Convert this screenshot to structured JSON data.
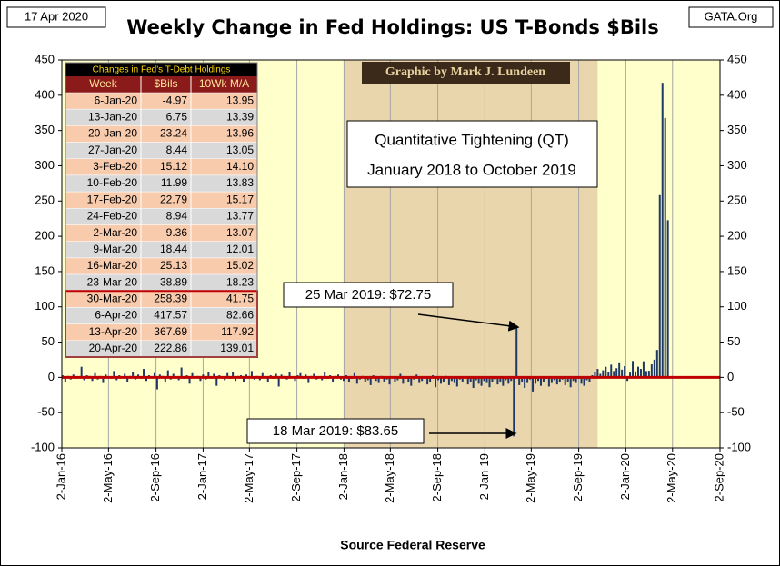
{
  "header": {
    "date": "17 Apr 2020",
    "site": "GATA.Org"
  },
  "chart_data": {
    "type": "bar",
    "title": "Weekly Change in Fed Holdings:  US T-Bonds $Bils",
    "credit": "Graphic by Mark J. Lundeen",
    "xlabel": "Source Federal Reserve",
    "color": "#1F3864",
    "zero_line_color": "#C00000",
    "grid": "x",
    "right_axis": true,
    "shade": {
      "from": "2018-01-01",
      "to": "2019-10-21",
      "color": "#EAD6AC"
    },
    "shade_text": [
      "Quantitative Tightening (QT)",
      "January 2018 to October 2019"
    ],
    "annotations": [
      {
        "text": "25 Mar 2019: $72.75"
      },
      {
        "text": "18 Mar 2019: $83.65"
      }
    ],
    "xlim": [
      "2016-01-02",
      "2020-09-02"
    ],
    "xticks": [
      {
        "value": "2016-01-02",
        "label": "2-Jan-16"
      },
      {
        "value": "2016-05-02",
        "label": "2-May-16"
      },
      {
        "value": "2016-09-02",
        "label": "2-Sep-16"
      },
      {
        "value": "2017-01-02",
        "label": "2-Jan-17"
      },
      {
        "value": "2017-05-02",
        "label": "2-May-17"
      },
      {
        "value": "2017-09-02",
        "label": "2-Sep-17"
      },
      {
        "value": "2018-01-02",
        "label": "2-Jan-18"
      },
      {
        "value": "2018-05-02",
        "label": "2-May-18"
      },
      {
        "value": "2018-09-02",
        "label": "2-Sep-18"
      },
      {
        "value": "2019-01-02",
        "label": "2-Jan-19"
      },
      {
        "value": "2019-05-02",
        "label": "2-May-19"
      },
      {
        "value": "2019-09-02",
        "label": "2-Sep-19"
      },
      {
        "value": "2020-01-02",
        "label": "2-Jan-20"
      },
      {
        "value": "2020-05-02",
        "label": "2-May-20"
      },
      {
        "value": "2020-09-02",
        "label": "2-Sep-20"
      }
    ],
    "ylim": [
      -100,
      450
    ],
    "yticks": [
      -100,
      -50,
      0,
      50,
      100,
      150,
      200,
      250,
      300,
      350,
      400,
      450
    ],
    "x": [
      "2016-01-04",
      "2016-01-11",
      "2016-01-18",
      "2016-01-25",
      "2016-02-01",
      "2016-02-08",
      "2016-02-15",
      "2016-02-22",
      "2016-02-29",
      "2016-03-07",
      "2016-03-14",
      "2016-03-21",
      "2016-03-28",
      "2016-04-04",
      "2016-04-11",
      "2016-04-18",
      "2016-04-25",
      "2016-05-02",
      "2016-05-09",
      "2016-05-16",
      "2016-05-23",
      "2016-05-30",
      "2016-06-06",
      "2016-06-13",
      "2016-06-20",
      "2016-06-27",
      "2016-07-04",
      "2016-07-11",
      "2016-07-18",
      "2016-07-25",
      "2016-08-01",
      "2016-08-08",
      "2016-08-15",
      "2016-08-22",
      "2016-08-29",
      "2016-09-05",
      "2016-09-12",
      "2016-09-19",
      "2016-09-26",
      "2016-10-03",
      "2016-10-10",
      "2016-10-17",
      "2016-10-24",
      "2016-10-31",
      "2016-11-07",
      "2016-11-14",
      "2016-11-21",
      "2016-11-28",
      "2016-12-05",
      "2016-12-12",
      "2016-12-19",
      "2016-12-26",
      "2017-01-02",
      "2017-01-09",
      "2017-01-16",
      "2017-01-23",
      "2017-01-30",
      "2017-02-06",
      "2017-02-13",
      "2017-02-20",
      "2017-02-27",
      "2017-03-06",
      "2017-03-13",
      "2017-03-20",
      "2017-03-27",
      "2017-04-03",
      "2017-04-10",
      "2017-04-17",
      "2017-04-24",
      "2017-05-01",
      "2017-05-08",
      "2017-05-15",
      "2017-05-22",
      "2017-05-29",
      "2017-06-05",
      "2017-06-12",
      "2017-06-19",
      "2017-06-26",
      "2017-07-03",
      "2017-07-10",
      "2017-07-17",
      "2017-07-24",
      "2017-07-31",
      "2017-08-07",
      "2017-08-14",
      "2017-08-21",
      "2017-08-28",
      "2017-09-04",
      "2017-09-11",
      "2017-09-18",
      "2017-09-25",
      "2017-10-02",
      "2017-10-09",
      "2017-10-16",
      "2017-10-23",
      "2017-10-30",
      "2017-11-06",
      "2017-11-13",
      "2017-11-20",
      "2017-11-27",
      "2017-12-04",
      "2017-12-11",
      "2017-12-18",
      "2017-12-25",
      "2018-01-01",
      "2018-01-08",
      "2018-01-15",
      "2018-01-22",
      "2018-01-29",
      "2018-02-05",
      "2018-02-12",
      "2018-02-19",
      "2018-02-26",
      "2018-03-05",
      "2018-03-12",
      "2018-03-19",
      "2018-03-26",
      "2018-04-02",
      "2018-04-09",
      "2018-04-16",
      "2018-04-23",
      "2018-04-30",
      "2018-05-07",
      "2018-05-14",
      "2018-05-21",
      "2018-05-28",
      "2018-06-04",
      "2018-06-11",
      "2018-06-18",
      "2018-06-25",
      "2018-07-02",
      "2018-07-09",
      "2018-07-16",
      "2018-07-23",
      "2018-07-30",
      "2018-08-06",
      "2018-08-13",
      "2018-08-20",
      "2018-08-27",
      "2018-09-03",
      "2018-09-10",
      "2018-09-17",
      "2018-09-24",
      "2018-10-01",
      "2018-10-08",
      "2018-10-15",
      "2018-10-22",
      "2018-10-29",
      "2018-11-05",
      "2018-11-12",
      "2018-11-19",
      "2018-11-26",
      "2018-12-03",
      "2018-12-10",
      "2018-12-17",
      "2018-12-24",
      "2018-12-31",
      "2019-01-07",
      "2019-01-14",
      "2019-01-21",
      "2019-01-28",
      "2019-02-04",
      "2019-02-11",
      "2019-02-18",
      "2019-02-25",
      "2019-03-04",
      "2019-03-11",
      "2019-03-18",
      "2019-03-25",
      "2019-04-01",
      "2019-04-08",
      "2019-04-15",
      "2019-04-22",
      "2019-04-29",
      "2019-05-06",
      "2019-05-13",
      "2019-05-20",
      "2019-05-27",
      "2019-06-03",
      "2019-06-10",
      "2019-06-17",
      "2019-06-24",
      "2019-07-01",
      "2019-07-08",
      "2019-07-15",
      "2019-07-22",
      "2019-07-29",
      "2019-08-05",
      "2019-08-12",
      "2019-08-19",
      "2019-08-26",
      "2019-09-02",
      "2019-09-09",
      "2019-09-16",
      "2019-09-23",
      "2019-09-30",
      "2019-10-07",
      "2019-10-14",
      "2019-10-21",
      "2019-10-28",
      "2019-11-04",
      "2019-11-11",
      "2019-11-18",
      "2019-11-25",
      "2019-12-02",
      "2019-12-09",
      "2019-12-16",
      "2019-12-23",
      "2019-12-30",
      "2020-01-06",
      "2020-01-13",
      "2020-01-20",
      "2020-01-27",
      "2020-02-03",
      "2020-02-10",
      "2020-02-17",
      "2020-02-24",
      "2020-03-02",
      "2020-03-09",
      "2020-03-16",
      "2020-03-23",
      "2020-03-30",
      "2020-04-06",
      "2020-04-13",
      "2020-04-20"
    ],
    "values": [
      3,
      -6,
      2,
      -3,
      4,
      -2,
      1,
      15,
      -4,
      3,
      2,
      -5,
      6,
      -3,
      2,
      -8,
      4,
      1,
      -2,
      9,
      -4,
      3,
      -1,
      5,
      -6,
      2,
      8,
      -3,
      4,
      -2,
      12,
      -5,
      3,
      -1,
      6,
      -17,
      4,
      2,
      -7,
      10,
      -3,
      5,
      1,
      -4,
      14,
      -2,
      3,
      -9,
      6,
      -1,
      2,
      -5,
      4,
      -3,
      7,
      -2,
      5,
      -12,
      3,
      1,
      -4,
      6,
      -2,
      8,
      -5,
      2,
      3,
      -6,
      4,
      -1,
      9,
      -3,
      2,
      -4,
      6,
      1,
      -7,
      3,
      -2,
      5,
      -13,
      4,
      2,
      -3,
      7,
      -1,
      -5,
      3,
      6,
      -2,
      4,
      -8,
      2,
      5,
      -3,
      1,
      -4,
      7,
      -2,
      3,
      -6,
      2,
      4,
      -3,
      -5,
      3,
      -7,
      -2,
      6,
      -9,
      -3,
      2,
      -6,
      -4,
      -11,
      3,
      -5,
      -8,
      2,
      -6,
      -3,
      -10,
      1,
      -7,
      -4,
      5,
      -9,
      -2,
      -6,
      -12,
      -3,
      4,
      -8,
      -5,
      -2,
      -10,
      -7,
      3,
      -14,
      -4,
      -9,
      -6,
      2,
      -11,
      -5,
      -8,
      -13,
      -3,
      -7,
      1,
      -10,
      -6,
      -15,
      -4,
      -9,
      -12,
      -5,
      -8,
      -14,
      -6,
      -3,
      -10,
      -7,
      -12,
      -4,
      -9,
      -5,
      -83.65,
      72.75,
      -11,
      -6,
      -15,
      -8,
      -3,
      -20,
      -9,
      -5,
      -12,
      -7,
      -2,
      -13,
      -8,
      -4,
      -10,
      -6,
      -3,
      -11,
      -7,
      -14,
      -5,
      -8,
      -2,
      -9,
      -12,
      -4,
      -6,
      3,
      8,
      12,
      5,
      10,
      15,
      7,
      18,
      9,
      13,
      20,
      11,
      16,
      -4.97,
      6.75,
      23.24,
      8.44,
      15.12,
      11.99,
      22.79,
      8.94,
      9.36,
      18.44,
      25.13,
      38.89,
      258.39,
      417.57,
      367.69,
      222.86
    ]
  },
  "table": {
    "title": "Changes in Fed's T-Debt Holdings",
    "columns": [
      "Week",
      "$Bils",
      "10Wk M/A"
    ],
    "first_value_index": 209,
    "weeks": [
      "6-Jan-20",
      "13-Jan-20",
      "20-Jan-20",
      "27-Jan-20",
      "3-Feb-20",
      "10-Feb-20",
      "17-Feb-20",
      "24-Feb-20",
      "2-Mar-20",
      "9-Mar-20",
      "16-Mar-20",
      "23-Mar-20",
      "30-Mar-20",
      "6-Apr-20",
      "13-Apr-20",
      "20-Apr-20"
    ],
    "ma": [
      "13.95",
      "13.39",
      "13.96",
      "13.05",
      "14.10",
      "13.83",
      "15.17",
      "13.77",
      "13.07",
      "12.01",
      "15.02",
      "18.23",
      "41.75",
      "82.66",
      "117.92",
      "139.01"
    ],
    "highlight_from": 12
  }
}
